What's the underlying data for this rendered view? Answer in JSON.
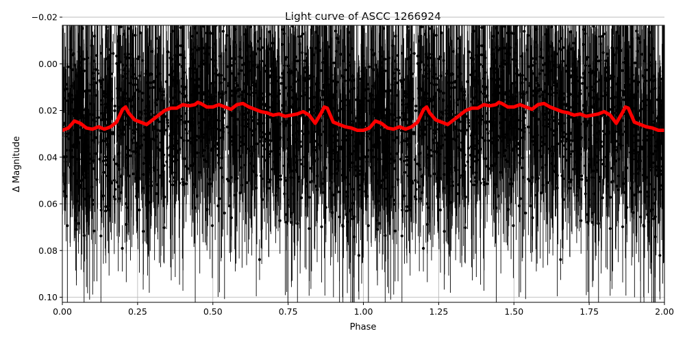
{
  "chart_data": {
    "type": "scatter",
    "title": "Light curve of ASCC 1266924",
    "xlabel": "Phase",
    "ylabel": "Δ Magnitude",
    "xlim": [
      0.0,
      2.0
    ],
    "ylim": [
      0.1022,
      -0.0165
    ],
    "y_inverted": true,
    "grid": true,
    "x_ticks": [
      0.0,
      0.25,
      0.5,
      0.75,
      1.0,
      1.25,
      1.5,
      1.75,
      2.0
    ],
    "x_tick_labels": [
      "0.00",
      "0.25",
      "0.50",
      "0.75",
      "1.00",
      "1.25",
      "1.50",
      "1.75",
      "2.00"
    ],
    "y_ticks": [
      -0.02,
      0.0,
      0.02,
      0.04,
      0.06,
      0.08,
      0.1
    ],
    "y_tick_labels": [
      "−0.02",
      "0.00",
      "0.02",
      "0.04",
      "0.06",
      "0.08",
      "0.10"
    ],
    "colors": {
      "points": "#000000",
      "model": "#ff0000",
      "grid": "#b0b0b0"
    },
    "series": [
      {
        "kind": "observations_with_errorbars",
        "center_curve": "model",
        "scatter_sigma": 0.019,
        "errorbar_min": 0.008,
        "errorbar_max": 0.05,
        "n_points_per_cycle": 1700
      },
      {
        "kind": "model",
        "x": [
          0.0,
          0.02,
          0.04,
          0.06,
          0.08,
          0.1,
          0.12,
          0.14,
          0.16,
          0.18,
          0.2,
          0.21,
          0.22,
          0.24,
          0.26,
          0.28,
          0.3,
          0.32,
          0.34,
          0.36,
          0.38,
          0.4,
          0.42,
          0.44,
          0.45,
          0.46,
          0.48,
          0.5,
          0.52,
          0.54,
          0.56,
          0.58,
          0.6,
          0.62,
          0.64,
          0.66,
          0.68,
          0.7,
          0.72,
          0.74,
          0.76,
          0.78,
          0.8,
          0.82,
          0.84,
          0.86,
          0.87,
          0.88,
          0.9,
          0.92,
          0.94,
          0.96,
          0.98,
          1.0
        ],
        "y": [
          0.0285,
          0.0275,
          0.0245,
          0.0255,
          0.0275,
          0.028,
          0.027,
          0.028,
          0.027,
          0.025,
          0.0195,
          0.0185,
          0.021,
          0.024,
          0.025,
          0.026,
          0.024,
          0.022,
          0.02,
          0.019,
          0.019,
          0.0175,
          0.018,
          0.0175,
          0.0165,
          0.017,
          0.0185,
          0.0185,
          0.0175,
          0.0185,
          0.0195,
          0.0175,
          0.017,
          0.0185,
          0.0195,
          0.0205,
          0.021,
          0.022,
          0.0215,
          0.0225,
          0.022,
          0.0215,
          0.0205,
          0.022,
          0.0255,
          0.021,
          0.0185,
          0.019,
          0.025,
          0.026,
          0.027,
          0.0275,
          0.0285,
          0.0285
        ],
        "repeats_each_cycle": true
      }
    ]
  }
}
